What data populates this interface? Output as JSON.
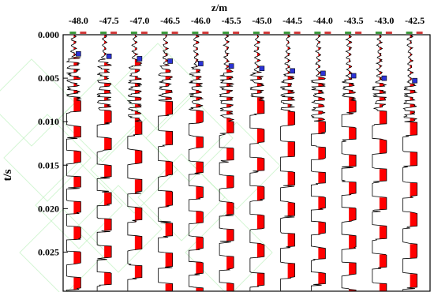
{
  "chart_data": {
    "type": "line",
    "title": "",
    "x_axis_label": "z/m",
    "y_axis_label": "t/s",
    "columns": [
      "-48.0",
      "-47.5",
      "-47.0",
      "-46.5",
      "-46.0",
      "-45.5",
      "-45.0",
      "-44.5",
      "-44.0",
      "-43.5",
      "-43.0",
      "-42.5"
    ],
    "y_ticks": [
      "0.000",
      "0.005",
      "0.010",
      "0.015",
      "0.020",
      "0.025"
    ],
    "ylim": [
      0,
      0.0295
    ],
    "y_reversed": true,
    "grid": false,
    "colors": {
      "fill": "#ff0000",
      "trace": "#000000",
      "top_marker": "#2b33d6",
      "tag_green": "#3d9b3d",
      "tag_red": "#d23c3c",
      "watermark": "#b8f0b8"
    }
  }
}
